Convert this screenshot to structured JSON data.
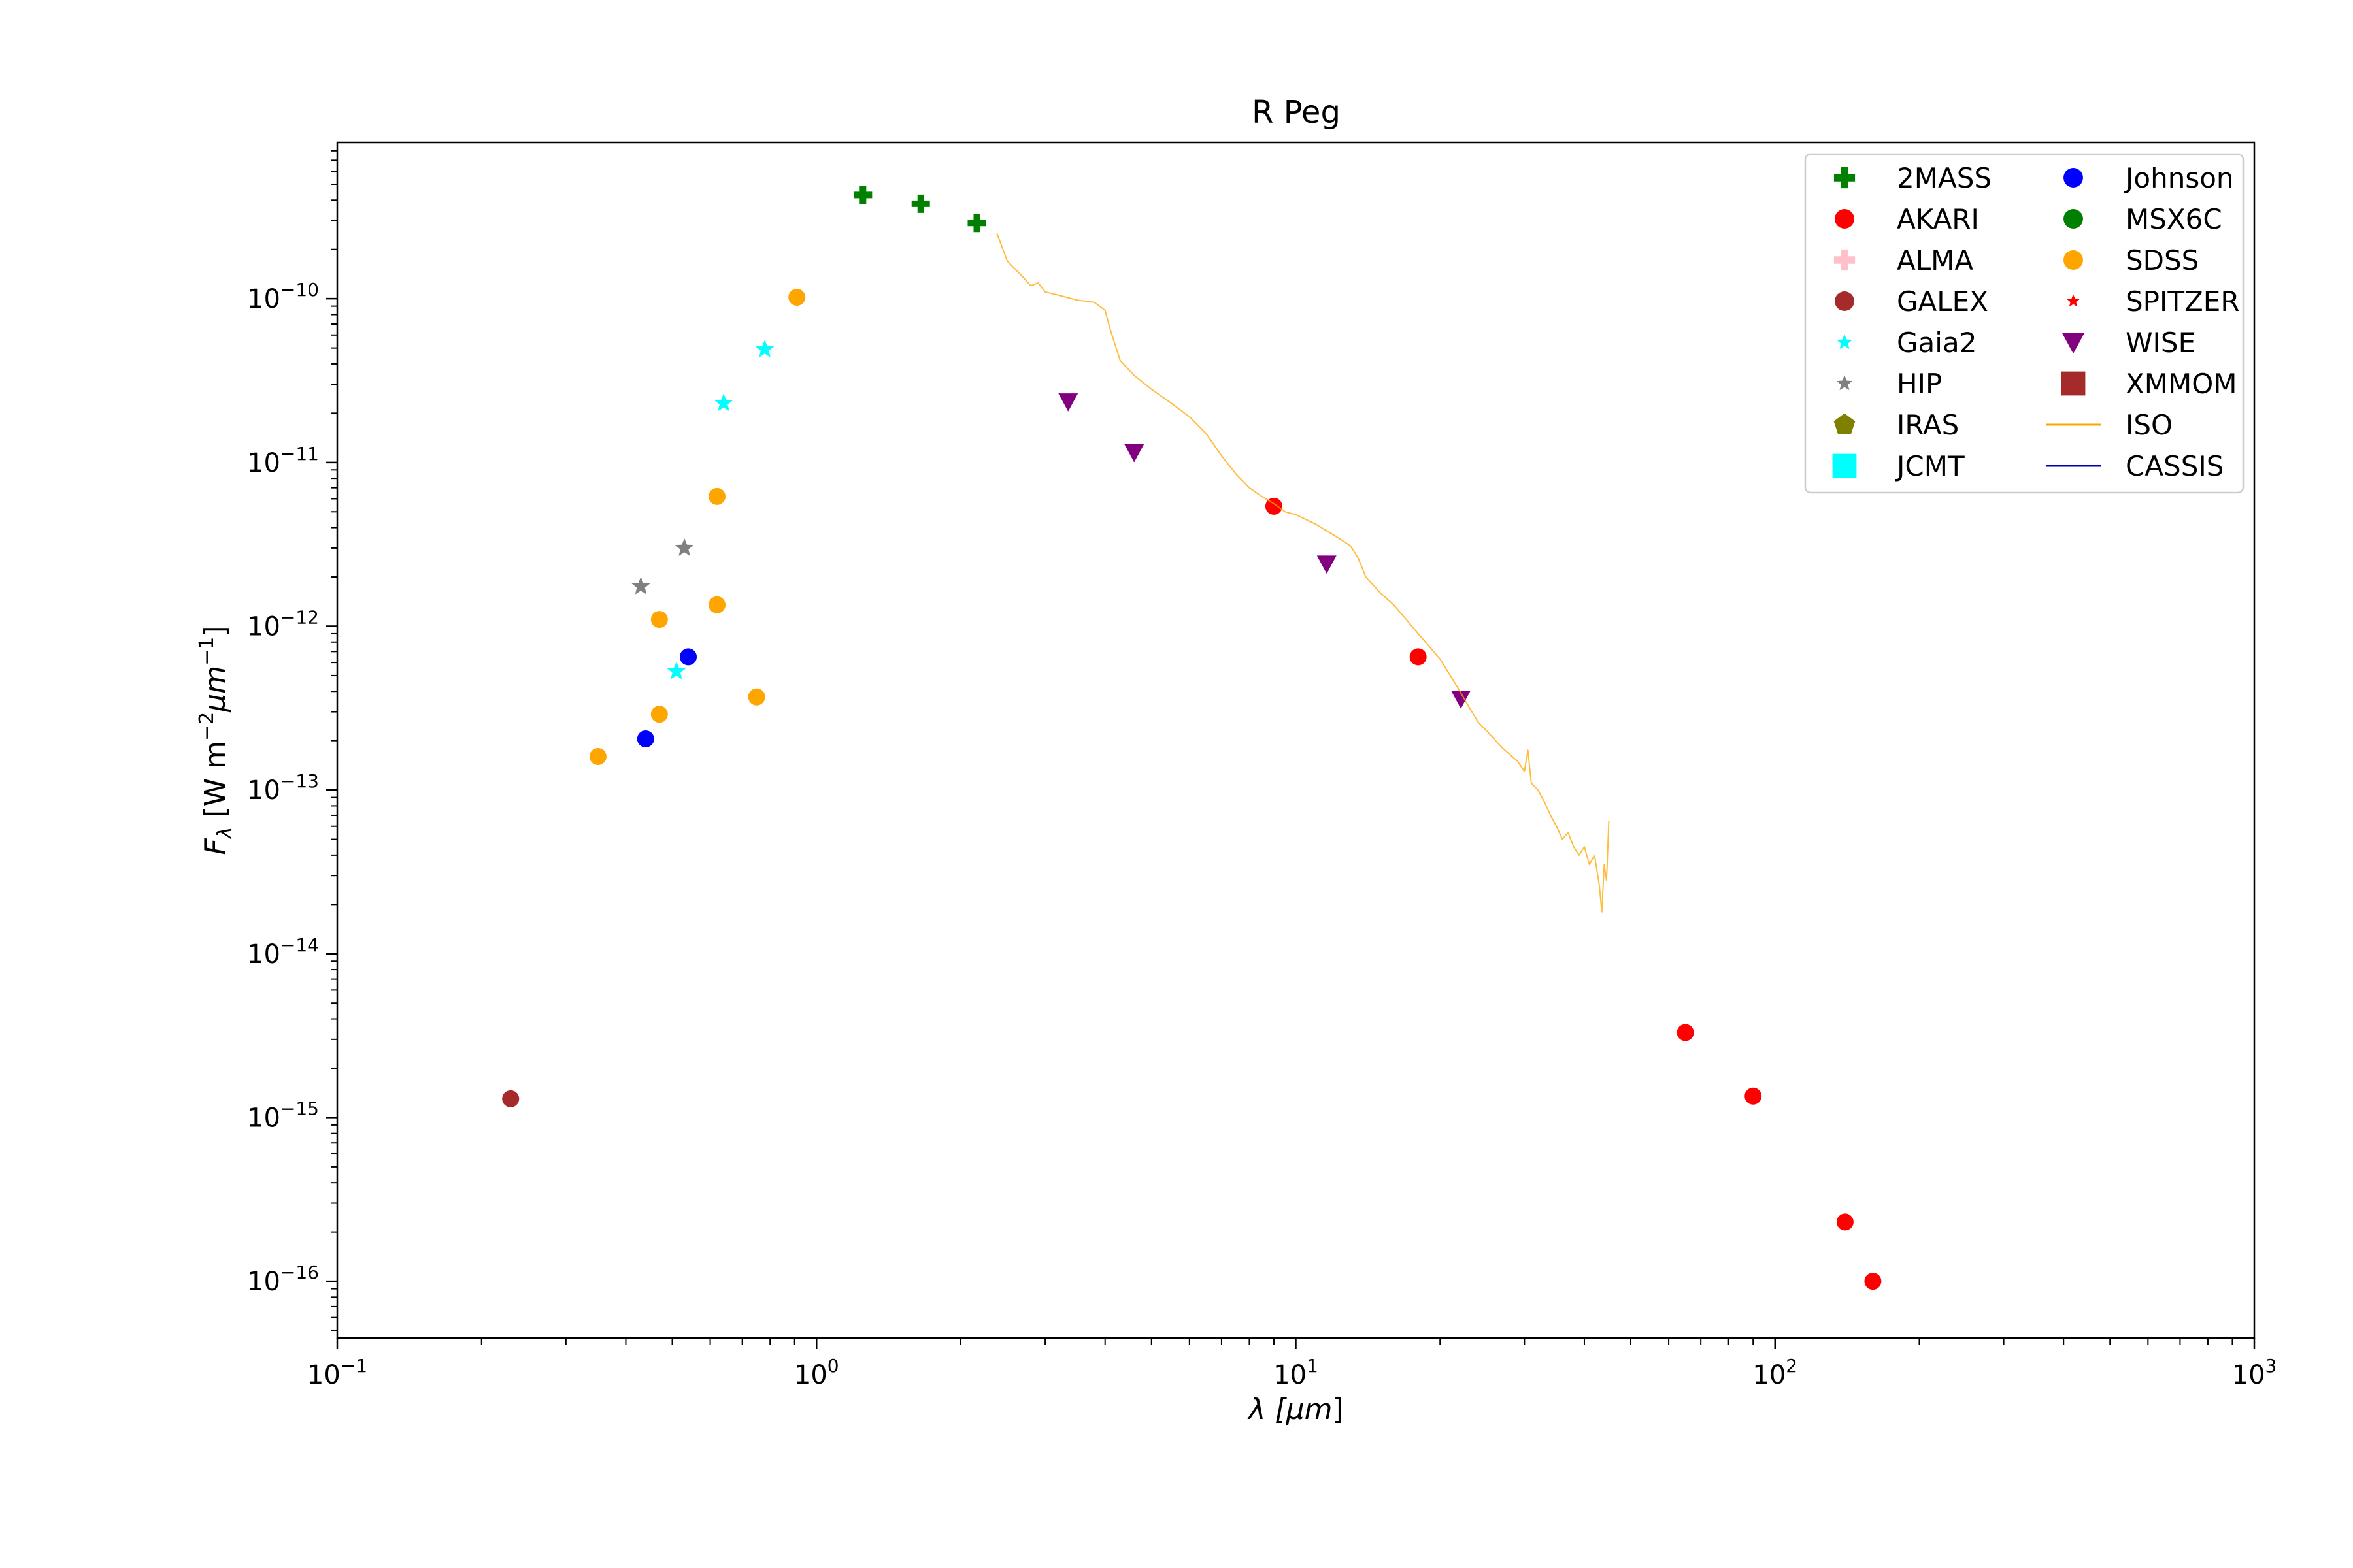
{
  "chart_data": {
    "type": "scatter",
    "title": "R Peg",
    "xlabel": {
      "main": "λ [",
      "mu": "μm",
      "close": "]"
    },
    "ylabel": {
      "f": "F",
      "sub": "λ",
      "pre": " [W m",
      "exp1": "−2",
      "mu": "μm",
      "exp2": "−1",
      "close": "]"
    },
    "xscale": "log",
    "yscale": "log",
    "xlim": [
      0.1,
      1000
    ],
    "ylim": [
      4.5e-17,
      9e-10
    ],
    "x_ticks": [
      {
        "value": 0.1,
        "base": "10",
        "exp": "−1"
      },
      {
        "value": 1,
        "base": "10",
        "exp": "0"
      },
      {
        "value": 10,
        "base": "10",
        "exp": "1"
      },
      {
        "value": 100,
        "base": "10",
        "exp": "2"
      },
      {
        "value": 1000,
        "base": "10",
        "exp": "3"
      }
    ],
    "y_ticks": [
      {
        "value": 1e-16,
        "base": "10",
        "exp": "−16"
      },
      {
        "value": 1e-15,
        "base": "10",
        "exp": "−15"
      },
      {
        "value": 1e-14,
        "base": "10",
        "exp": "−14"
      },
      {
        "value": 1e-13,
        "base": "10",
        "exp": "−13"
      },
      {
        "value": 1e-12,
        "base": "10",
        "exp": "−12"
      },
      {
        "value": 1e-11,
        "base": "10",
        "exp": "−11"
      },
      {
        "value": 1e-10,
        "base": "10",
        "exp": "−10"
      }
    ],
    "grid": false,
    "legend_position": "top-right",
    "series": [
      {
        "name": "2MASS",
        "marker": "plus",
        "color": "#008000",
        "points": [
          [
            1.25,
            4.3e-10
          ],
          [
            1.65,
            3.8e-10
          ],
          [
            2.16,
            2.9e-10
          ]
        ]
      },
      {
        "name": "AKARI",
        "marker": "circle",
        "color": "#ff0000",
        "points": [
          [
            9.0,
            5.4e-12
          ],
          [
            18.0,
            6.5e-13
          ],
          [
            65.0,
            3.3e-15
          ],
          [
            90.0,
            1.35e-15
          ],
          [
            140.0,
            2.3e-16
          ],
          [
            160.0,
            1e-16
          ]
        ]
      },
      {
        "name": "ALMA",
        "marker": "plus",
        "color": "#ffc0cb",
        "points": []
      },
      {
        "name": "GALEX",
        "marker": "circle",
        "color": "#a52a2a",
        "points": [
          [
            0.23,
            1.3e-15
          ]
        ]
      },
      {
        "name": "Gaia2",
        "marker": "star",
        "color": "#00ffff",
        "points": [
          [
            0.51,
            5.3e-13
          ],
          [
            0.64,
            2.3e-11
          ],
          [
            0.78,
            4.9e-11
          ]
        ]
      },
      {
        "name": "HIP",
        "marker": "star",
        "color": "#808080",
        "points": [
          [
            0.43,
            1.75e-12
          ],
          [
            0.53,
            3e-12
          ]
        ]
      },
      {
        "name": "IRAS",
        "marker": "pentagon",
        "color": "#808000",
        "points": []
      },
      {
        "name": "JCMT",
        "marker": "square",
        "color": "#00ffff",
        "points": []
      },
      {
        "name": "Johnson",
        "marker": "circle",
        "color": "#0000ff",
        "points": [
          [
            0.44,
            2.05e-13
          ],
          [
            0.54,
            6.5e-13
          ]
        ]
      },
      {
        "name": "MSX6C",
        "marker": "circle",
        "color": "#008000",
        "points": []
      },
      {
        "name": "SDSS",
        "marker": "circle",
        "color": "#ffa500",
        "points": [
          [
            0.35,
            1.6e-13
          ],
          [
            0.47,
            1.1e-12
          ],
          [
            0.47,
            2.9e-13
          ],
          [
            0.62,
            6.2e-12
          ],
          [
            0.62,
            1.35e-12
          ],
          [
            0.75,
            3.7e-13
          ],
          [
            0.91,
            1.02e-10
          ]
        ]
      },
      {
        "name": "SPITZER",
        "marker": "star",
        "color": "#ff0000",
        "points": []
      },
      {
        "name": "WISE",
        "marker": "triangle-down",
        "color": "#800080",
        "points": [
          [
            3.35,
            2.35e-11
          ],
          [
            4.6,
            1.15e-11
          ],
          [
            11.6,
            2.4e-12
          ],
          [
            22.1,
            3.6e-13
          ]
        ]
      },
      {
        "name": "XMMOM",
        "marker": "square",
        "color": "#a52a2a",
        "points": []
      },
      {
        "name": "ISO",
        "marker": "line",
        "color": "#ffa500",
        "points": [
          [
            2.38,
            2.5e-10
          ],
          [
            2.5,
            1.7e-10
          ],
          [
            2.7,
            1.35e-10
          ],
          [
            2.8,
            1.2e-10
          ],
          [
            2.9,
            1.25e-10
          ],
          [
            3.0,
            1.1e-10
          ],
          [
            3.2,
            1.05e-10
          ],
          [
            3.5,
            9.8e-11
          ],
          [
            3.8,
            9.5e-11
          ],
          [
            4.0,
            8.5e-11
          ],
          [
            4.1,
            6.5e-11
          ],
          [
            4.3,
            4.2e-11
          ],
          [
            4.6,
            3.4e-11
          ],
          [
            5.0,
            2.8e-11
          ],
          [
            5.5,
            2.3e-11
          ],
          [
            6.0,
            1.9e-11
          ],
          [
            6.5,
            1.5e-11
          ],
          [
            7.0,
            1.1e-11
          ],
          [
            7.5,
            8.5e-12
          ],
          [
            8.0,
            7e-12
          ],
          [
            8.5,
            6.2e-12
          ],
          [
            9.0,
            5.6e-12
          ],
          [
            9.5,
            5e-12
          ],
          [
            10.0,
            4.8e-12
          ],
          [
            11.0,
            4.2e-12
          ],
          [
            12.0,
            3.6e-12
          ],
          [
            13.0,
            3.1e-12
          ],
          [
            13.5,
            2.6e-12
          ],
          [
            14.0,
            2e-12
          ],
          [
            15.0,
            1.6e-12
          ],
          [
            16.0,
            1.35e-12
          ],
          [
            17.0,
            1.1e-12
          ],
          [
            18.0,
            9e-13
          ],
          [
            19.0,
            7.5e-13
          ],
          [
            20.0,
            6.3e-13
          ],
          [
            21.0,
            5e-13
          ],
          [
            22.0,
            4e-13
          ],
          [
            23.0,
            3.2e-13
          ],
          [
            24.0,
            2.6e-13
          ],
          [
            25.0,
            2.3e-13
          ],
          [
            27.0,
            1.8e-13
          ],
          [
            29.0,
            1.5e-13
          ],
          [
            30.0,
            1.3e-13
          ],
          [
            30.5,
            1.75e-13
          ],
          [
            31.0,
            1.1e-13
          ],
          [
            32.0,
            1e-13
          ],
          [
            33.0,
            8.5e-14
          ],
          [
            34.0,
            7e-14
          ],
          [
            35.0,
            6e-14
          ],
          [
            36.0,
            5e-14
          ],
          [
            37.0,
            5.5e-14
          ],
          [
            38.0,
            4.5e-14
          ],
          [
            39.0,
            4e-14
          ],
          [
            40.0,
            4.5e-14
          ],
          [
            41.0,
            3.5e-14
          ],
          [
            42.0,
            4e-14
          ],
          [
            43.0,
            2.6e-14
          ],
          [
            43.5,
            1.8e-14
          ],
          [
            44.0,
            3.5e-14
          ],
          [
            44.5,
            2.8e-14
          ],
          [
            45.0,
            6.5e-14
          ]
        ]
      },
      {
        "name": "CASSIS",
        "marker": "line",
        "color": "#0000aa",
        "points": []
      }
    ]
  }
}
